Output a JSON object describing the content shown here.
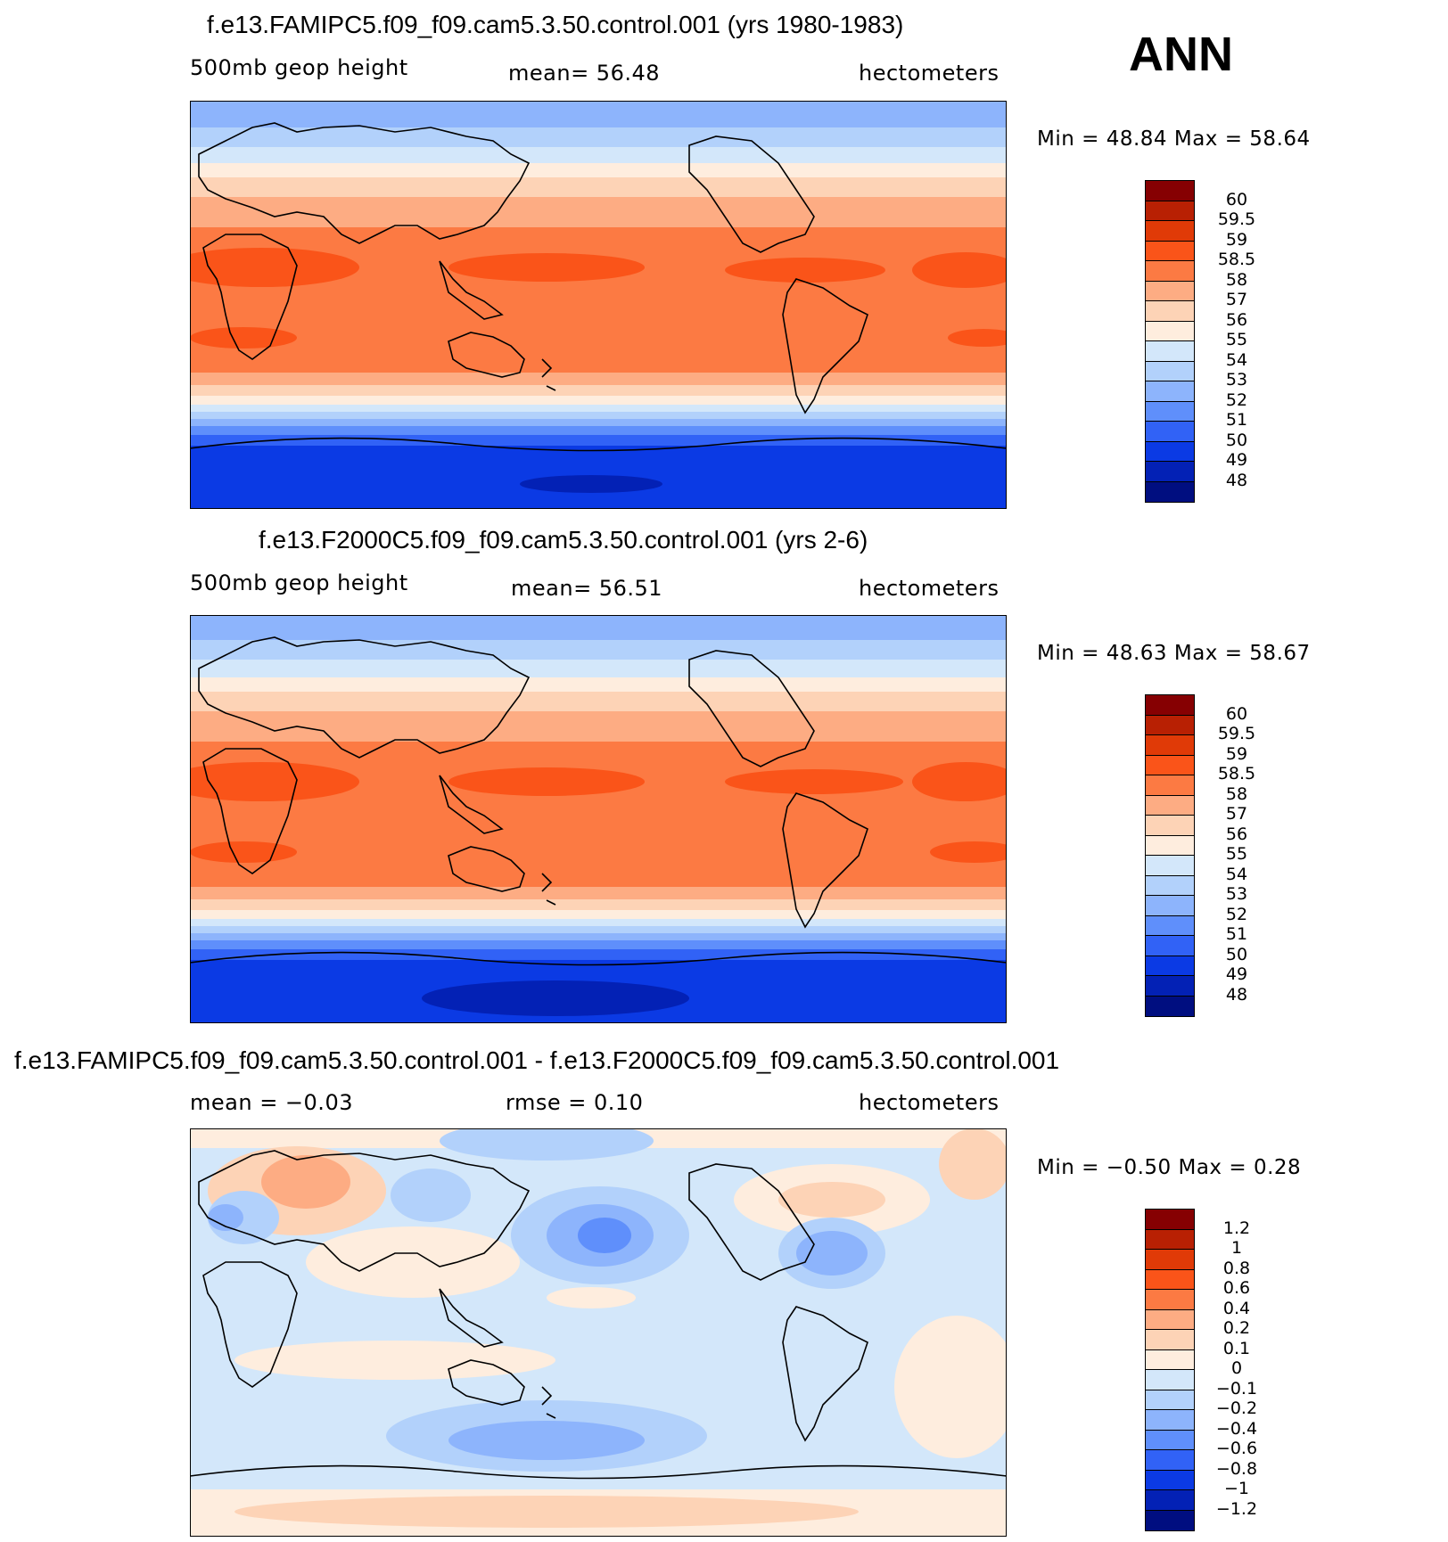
{
  "season": "ANN",
  "panels": [
    {
      "title": "f.e13.FAMIPC5.f09_f09.cam5.3.50.control.001 (yrs 1980-1983)",
      "left_label": "500mb  geop  height",
      "center_label": "mean=   56.48",
      "right_label": "hectometers",
      "minmax": "Min  =    48.84  Max  =    58.64",
      "colorbar_labels": [
        "60",
        "59.5",
        "59",
        "58.5",
        "58",
        "57",
        "56",
        "55",
        "54",
        "53",
        "52",
        "51",
        "50",
        "49",
        "48"
      ]
    },
    {
      "title": "f.e13.F2000C5.f09_f09.cam5.3.50.control.001 (yrs 2-6)",
      "left_label": "500mb  geop  height",
      "center_label": "mean=   56.51",
      "right_label": "hectometers",
      "minmax": "Min  =    48.63  Max  =    58.67",
      "colorbar_labels": [
        "60",
        "59.5",
        "59",
        "58.5",
        "58",
        "57",
        "56",
        "55",
        "54",
        "53",
        "52",
        "51",
        "50",
        "49",
        "48"
      ]
    },
    {
      "title": "f.e13.FAMIPC5.f09_f09.cam5.3.50.control.001 - f.e13.F2000C5.f09_f09.cam5.3.50.control.001",
      "left_label": "mean  =    −0.03",
      "center_label": "rmse  =     0.10",
      "right_label": "hectometers",
      "minmax": "Min  =   −0.50  Max  =     0.28",
      "colorbar_labels": [
        "1.2",
        "1",
        "0.8",
        "0.6",
        "0.4",
        "0.2",
        "0.1",
        "0",
        "−0.1",
        "−0.2",
        "−0.4",
        "−0.6",
        "−0.8",
        "−1",
        "−1.2"
      ]
    }
  ],
  "colors": {
    "scale": [
      "#860002",
      "#b82003",
      "#e03a07",
      "#fa5419",
      "#fc7a43",
      "#fdac83",
      "#fdd3b6",
      "#feedde",
      "#d3e7fa",
      "#b2d1fb",
      "#8db4fc",
      "#5f8ffb",
      "#3162f6",
      "#0b3ae4",
      "#0321b5",
      "#000e80"
    ],
    "coast": "#000000"
  }
}
